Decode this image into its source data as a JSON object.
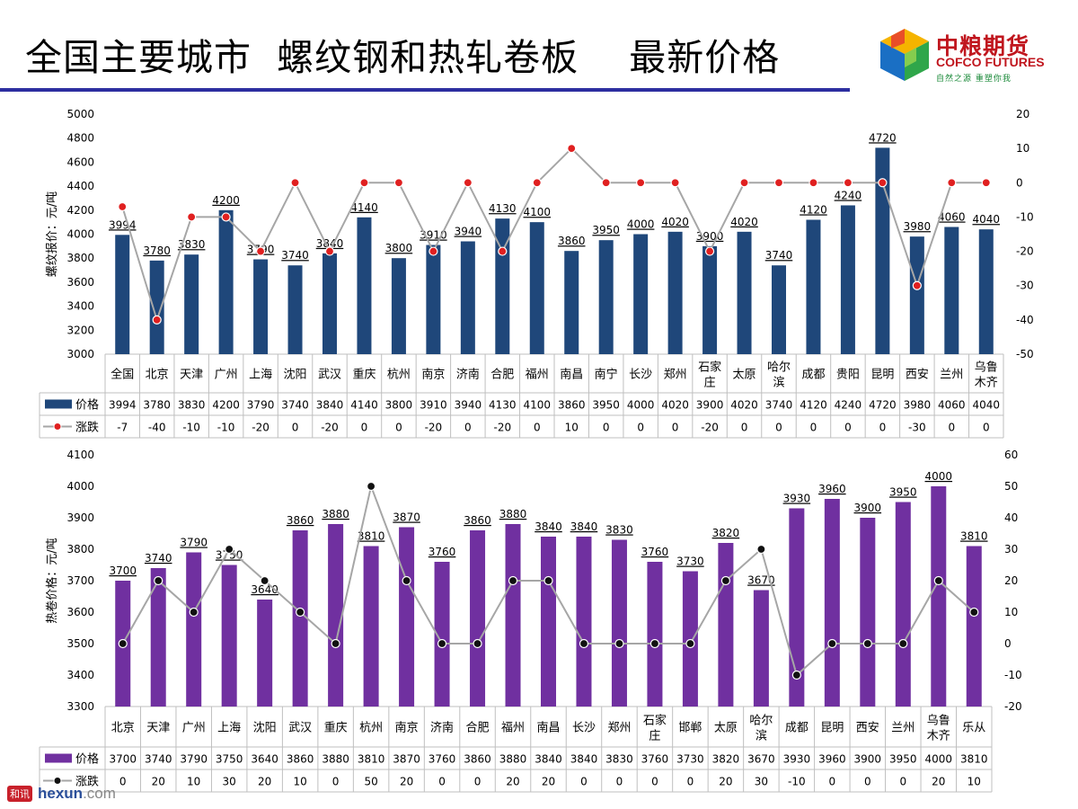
{
  "page": {
    "title": "全国主要城市  螺纹钢和热轧卷板    最新价格"
  },
  "logo": {
    "cn": "中粮期货",
    "en": "COFCO FUTURES",
    "slogan": "自然之源  重塑你我"
  },
  "watermark": {
    "badge": "和讯",
    "site": "hexun",
    "tld": ".com"
  },
  "colors": {
    "rebar": "#1f477a",
    "hotcoil": "#7030a0",
    "line": "#a6a6a6",
    "rebar_marker": "#e02020",
    "hotcoil_marker": "#111111"
  },
  "chart_data": [
    {
      "type": "bar",
      "categories": [
        "全国",
        "北京",
        "天津",
        "广州",
        "上海",
        "沈阳",
        "武汉",
        "重庆",
        "杭州",
        "南京",
        "济南",
        "合肥",
        "福州",
        "南昌",
        "南宁",
        "长沙",
        "郑州",
        "石家庄",
        "太原",
        "哈尔滨",
        "成都",
        "贵阳",
        "昆明",
        "西安",
        "兰州",
        "乌鲁木齐"
      ],
      "series": [
        {
          "name": "价格",
          "type": "bar",
          "axis": "left",
          "values": [
            3994,
            3780,
            3830,
            4200,
            3790,
            3740,
            3840,
            4140,
            3800,
            3910,
            3940,
            4130,
            4100,
            3860,
            3950,
            4000,
            4020,
            3900,
            4020,
            3740,
            4120,
            4240,
            4720,
            3980,
            4060,
            4040
          ]
        },
        {
          "name": "涨跌",
          "type": "line",
          "axis": "right",
          "values": [
            -7,
            -40,
            -10,
            -10,
            -20,
            0,
            -20,
            0,
            0,
            -20,
            0,
            -20,
            0,
            10,
            0,
            0,
            0,
            -20,
            0,
            0,
            0,
            0,
            0,
            -30,
            0,
            0
          ]
        }
      ],
      "ylabel": "螺纹报价：元/吨",
      "ylim": [
        3000,
        5000
      ],
      "yticks": [
        "3000",
        "3200",
        "3400",
        "3600",
        "3800",
        "4000",
        "4200",
        "4400",
        "4600",
        "4800",
        "5000"
      ],
      "y2lim": [
        -50,
        20
      ],
      "y2ticks": [
        "-50",
        "-40",
        "-30",
        "-20",
        "-10",
        "0",
        "10",
        "20"
      ],
      "table": true
    },
    {
      "type": "bar",
      "categories": [
        "北京",
        "天津",
        "广州",
        "上海",
        "沈阳",
        "武汉",
        "重庆",
        "杭州",
        "南京",
        "济南",
        "合肥",
        "福州",
        "南昌",
        "长沙",
        "郑州",
        "石家庄",
        "邯郸",
        "太原",
        "哈尔滨",
        "成都",
        "昆明",
        "西安",
        "兰州",
        "乌鲁木齐",
        "乐从"
      ],
      "series": [
        {
          "name": "价格",
          "type": "bar",
          "axis": "left",
          "values": [
            3700,
            3740,
            3790,
            3750,
            3640,
            3860,
            3880,
            3810,
            3870,
            3760,
            3860,
            3880,
            3840,
            3840,
            3830,
            3760,
            3730,
            3820,
            3670,
            3930,
            3960,
            3900,
            3950,
            4000,
            3810
          ]
        },
        {
          "name": "涨跌",
          "type": "line",
          "axis": "right",
          "values": [
            0,
            20,
            10,
            30,
            20,
            10,
            0,
            50,
            20,
            0,
            0,
            20,
            20,
            0,
            0,
            0,
            0,
            20,
            30,
            -10,
            0,
            0,
            0,
            20,
            10
          ]
        }
      ],
      "ylabel": "热卷价格：元/吨",
      "ylim": [
        3300,
        4100
      ],
      "yticks": [
        "3300",
        "3400",
        "3500",
        "3600",
        "3700",
        "3800",
        "3900",
        "4000",
        "4100"
      ],
      "y2lim": [
        -20,
        60
      ],
      "y2ticks": [
        "-20",
        "-10",
        "0",
        "10",
        "20",
        "30",
        "40",
        "50",
        "60"
      ],
      "table": true
    }
  ]
}
